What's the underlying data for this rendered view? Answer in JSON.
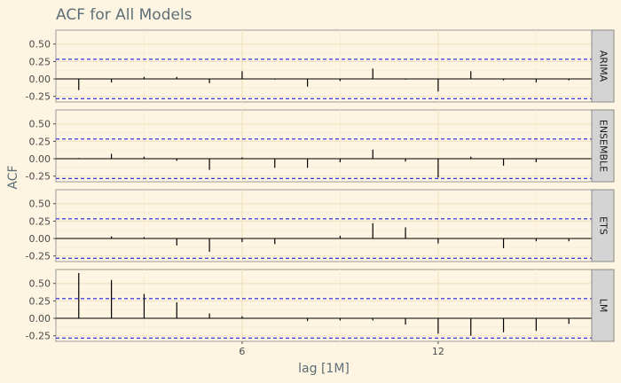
{
  "chart_data": {
    "type": "bar",
    "title": "ACF for All Models",
    "xlabel": "lag [1M]",
    "ylabel": "ACF",
    "x_ticks": [
      6,
      12
    ],
    "y_ticks": [
      0.5,
      0.25,
      0.0,
      -0.25
    ],
    "y_tick_labels": [
      "0.50",
      "0.25",
      "0.00",
      "-0.25"
    ],
    "xlim": [
      0.3,
      16.7
    ],
    "ylim": [
      -0.33,
      0.7
    ],
    "confidence_bound": 0.283,
    "lags": [
      1,
      2,
      3,
      4,
      5,
      6,
      7,
      8,
      9,
      10,
      11,
      12,
      13,
      14,
      15,
      16
    ],
    "panels": [
      {
        "name": "ARIMA",
        "values": [
          -0.16,
          -0.05,
          0.03,
          0.03,
          -0.06,
          0.11,
          -0.01,
          -0.11,
          -0.03,
          0.15,
          -0.01,
          -0.18,
          0.11,
          -0.02,
          -0.05,
          -0.02
        ]
      },
      {
        "name": "ENSEMBLE",
        "values": [
          0.01,
          0.07,
          0.03,
          -0.03,
          -0.16,
          0.02,
          -0.13,
          -0.13,
          -0.05,
          0.13,
          -0.04,
          -0.27,
          0.03,
          -0.1,
          -0.05,
          0.0
        ]
      },
      {
        "name": "ETS",
        "values": [
          0.0,
          0.03,
          0.02,
          -0.1,
          -0.19,
          -0.05,
          -0.08,
          0.0,
          0.04,
          0.22,
          0.16,
          -0.07,
          0.0,
          -0.14,
          -0.04,
          -0.04
        ]
      },
      {
        "name": "LM",
        "values": [
          0.65,
          0.55,
          0.35,
          0.23,
          0.07,
          0.03,
          0.0,
          -0.04,
          -0.03,
          -0.03,
          -0.09,
          -0.22,
          -0.25,
          -0.2,
          -0.18,
          -0.08
        ]
      }
    ],
    "colors": {
      "background": "#fdf5e1",
      "panel": "#fdf5e1",
      "grid_major": "#efe3c3",
      "grid_minor": "#f6ecd2",
      "bound": "#1f1fe0",
      "bar": "#000000",
      "strip": "#d4d4d4"
    },
    "grid": true
  }
}
